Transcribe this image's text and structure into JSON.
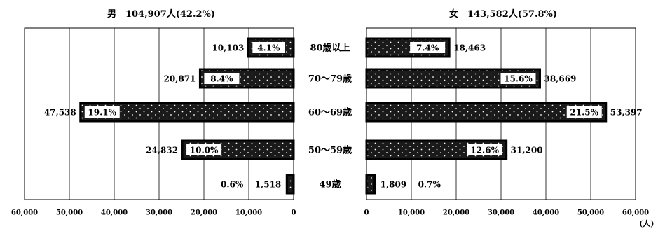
{
  "chart_data": [
    {
      "type": "bar",
      "panel": "left",
      "title": "男　104,907人(42.2%)",
      "categories": [
        "80歳以上",
        "70〜79歳",
        "60〜69歳",
        "50〜59歳",
        "49歳"
      ],
      "values": [
        10103,
        20871,
        47538,
        24832,
        1518
      ],
      "value_labels": [
        "10,103",
        "20,871",
        "47,538",
        "24,832",
        "1,518"
      ],
      "percent_labels": [
        "4.1%",
        "8.4%",
        "19.1%",
        "10.0%",
        "0.6%"
      ],
      "xlim": [
        0,
        60000
      ],
      "direction": "right-to-left",
      "ticks": [
        "60,000",
        "50,000",
        "40,000",
        "30,000",
        "20,000",
        "10,000",
        "0"
      ],
      "grid": true
    },
    {
      "type": "bar",
      "panel": "right",
      "title": "女　143,582人(57.8%)",
      "categories": [
        "80歳以上",
        "70〜79歳",
        "60〜69歳",
        "50〜59歳",
        "49歳"
      ],
      "values": [
        18463,
        38669,
        53397,
        31200,
        1809
      ],
      "value_labels": [
        "18,463",
        "38,669",
        "53,397",
        "31,200",
        "1,809"
      ],
      "percent_labels": [
        "7.4%",
        "15.6%",
        "21.5%",
        "12.6%",
        "0.7%"
      ],
      "xlim": [
        0,
        60000
      ],
      "direction": "left-to-right",
      "ticks": [
        "0",
        "10,000",
        "20,000",
        "30,000",
        "40,000",
        "50,000",
        "60,000"
      ],
      "unit": "(人)",
      "grid": true
    }
  ],
  "colors": {
    "bar": "#1a1a1a",
    "dots": "#ffffff",
    "grid": "#000000",
    "label_box": "#ffffff"
  }
}
